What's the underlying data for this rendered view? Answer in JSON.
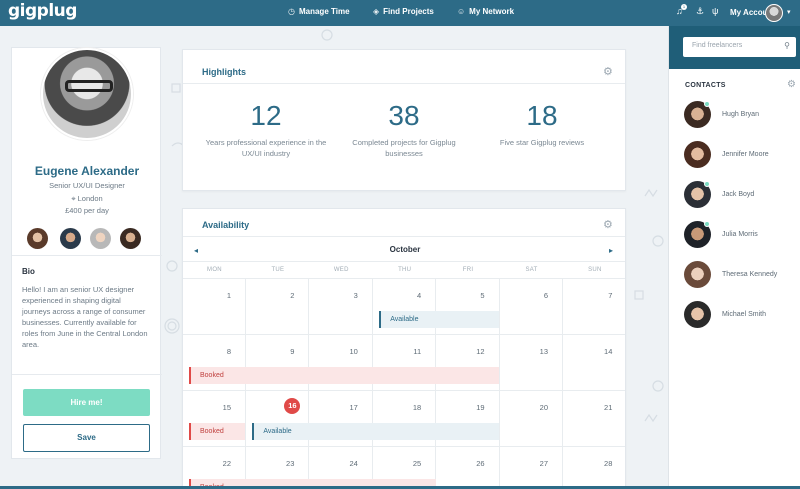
{
  "app": {
    "logo": "gigplug",
    "nav": [
      "Manage Time",
      "Find Projects",
      "My Network"
    ],
    "notification_count": "1",
    "account_label": "My Account"
  },
  "profile": {
    "name": "Eugene Alexander",
    "role": "Senior UX/UI Designer",
    "location": "London",
    "rate": "£400 per day",
    "bio_heading": "Bio",
    "bio": "Hello! I am an senior UX designer experienced in shaping digital journeys across a range of consumer businesses. Currently available for roles from June in the Central London area.",
    "hire_label": "Hire me!",
    "save_label": "Save"
  },
  "highlights": {
    "title": "Highlights",
    "stats": [
      {
        "value": "12",
        "label": "Years professional experience in the UX/UI industry"
      },
      {
        "value": "38",
        "label": "Completed projects for Gigplug businesses"
      },
      {
        "value": "18",
        "label": "Five star Gigplug reviews"
      }
    ]
  },
  "availability": {
    "title": "Availability",
    "month": "October",
    "weekdays": [
      "MON",
      "TUE",
      "WED",
      "THU",
      "FRI",
      "SAT",
      "SUN"
    ],
    "weeks": [
      [
        "1",
        "2",
        "3",
        "4",
        "5",
        "6",
        "7"
      ],
      [
        "8",
        "9",
        "10",
        "11",
        "12",
        "13",
        "14"
      ],
      [
        "15",
        "16",
        "17",
        "18",
        "19",
        "20",
        "21"
      ],
      [
        "22",
        "23",
        "24",
        "25",
        "26",
        "27",
        "28"
      ]
    ],
    "today": "16",
    "events": [
      {
        "label": "Available",
        "type": "avail",
        "week": 0,
        "start": 3,
        "end": 4
      },
      {
        "label": "Booked",
        "type": "booked",
        "week": 1,
        "start": 0,
        "end": 4
      },
      {
        "label": "Booked",
        "type": "booked",
        "week": 2,
        "start": 0,
        "end": 0
      },
      {
        "label": "Available",
        "type": "avail",
        "week": 2,
        "start": 1,
        "end": 4
      },
      {
        "label": "Booked",
        "type": "booked",
        "week": 3,
        "start": 0,
        "end": 3
      }
    ]
  },
  "sidebar": {
    "search_placeholder": "Find freelancers",
    "contacts_heading": "CONTACTS",
    "contacts": [
      {
        "name": "Hugh Bryan",
        "online": true
      },
      {
        "name": "Jennifer Moore",
        "online": false
      },
      {
        "name": "Jack Boyd",
        "online": true
      },
      {
        "name": "Julia Morris",
        "online": true
      },
      {
        "name": "Theresa Kennedy",
        "online": false
      },
      {
        "name": "Michael Smith",
        "online": false
      }
    ]
  },
  "colors": {
    "primary": "#2d6b87",
    "accent": "#7ddcc3",
    "booked": "#e04a48"
  }
}
